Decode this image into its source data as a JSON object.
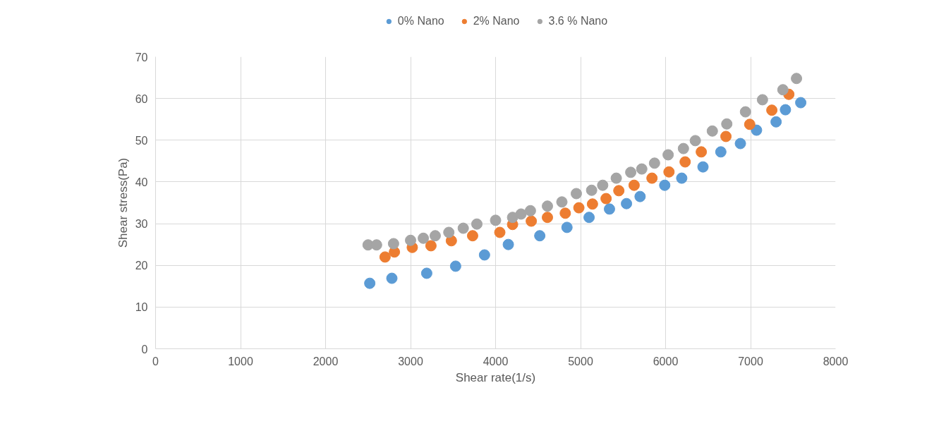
{
  "chart_data": {
    "type": "scatter",
    "xlabel": "Shear rate(1/s)",
    "ylabel": "Shear stress(Pa)",
    "xlim": [
      0,
      8000
    ],
    "ylim": [
      0,
      70
    ],
    "xticks": [
      0,
      1000,
      2000,
      3000,
      4000,
      5000,
      6000,
      7000,
      8000
    ],
    "yticks": [
      0,
      10,
      20,
      30,
      40,
      50,
      60,
      70
    ],
    "grid": true,
    "legend": "top",
    "marker": "circle",
    "series": [
      {
        "name": "0% Nano",
        "color": "#5b9bd5",
        "x": [
          2520,
          2780,
          3190,
          3530,
          3870,
          4150,
          4520,
          4840,
          5100,
          5340,
          5540,
          5700,
          5990,
          6190,
          6440,
          6650,
          6880,
          7070,
          7300,
          7410,
          7590
        ],
        "values": [
          15.7,
          16.9,
          18.1,
          19.8,
          22.5,
          25.0,
          27.1,
          29.1,
          31.5,
          33.5,
          34.8,
          36.5,
          39.2,
          40.9,
          43.6,
          47.2,
          49.2,
          52.4,
          54.4,
          57.3,
          59.0
        ]
      },
      {
        "name": "2% Nano",
        "color": "#ed7d31",
        "x": [
          2700,
          2810,
          3020,
          3240,
          3480,
          3730,
          4050,
          4200,
          4420,
          4610,
          4820,
          4980,
          5140,
          5300,
          5450,
          5630,
          5840,
          6040,
          6230,
          6420,
          6710,
          6990,
          7250,
          7450
        ],
        "values": [
          22.0,
          23.2,
          24.3,
          24.7,
          25.9,
          27.1,
          27.9,
          29.8,
          30.6,
          31.5,
          32.5,
          33.8,
          34.7,
          36.0,
          37.9,
          39.2,
          40.9,
          42.4,
          44.8,
          47.2,
          50.9,
          53.8,
          57.2,
          61.0
        ]
      },
      {
        "name": "3.6 % Nano",
        "color": "#a5a5a5",
        "x": [
          2500,
          2600,
          2800,
          3000,
          3150,
          3290,
          3450,
          3620,
          3780,
          4000,
          4200,
          4300,
          4410,
          4610,
          4780,
          4950,
          5130,
          5260,
          5420,
          5590,
          5720,
          5870,
          6030,
          6210,
          6350,
          6550,
          6720,
          6940,
          7140,
          7380,
          7540
        ],
        "values": [
          24.9,
          24.9,
          25.2,
          26.0,
          26.5,
          27.1,
          27.9,
          28.9,
          29.9,
          30.8,
          31.5,
          32.3,
          33.1,
          34.2,
          35.2,
          37.2,
          38.0,
          39.2,
          40.9,
          42.3,
          43.1,
          44.5,
          46.5,
          48.0,
          49.9,
          52.2,
          53.9,
          56.8,
          59.7,
          62.1,
          64.8
        ]
      }
    ]
  }
}
